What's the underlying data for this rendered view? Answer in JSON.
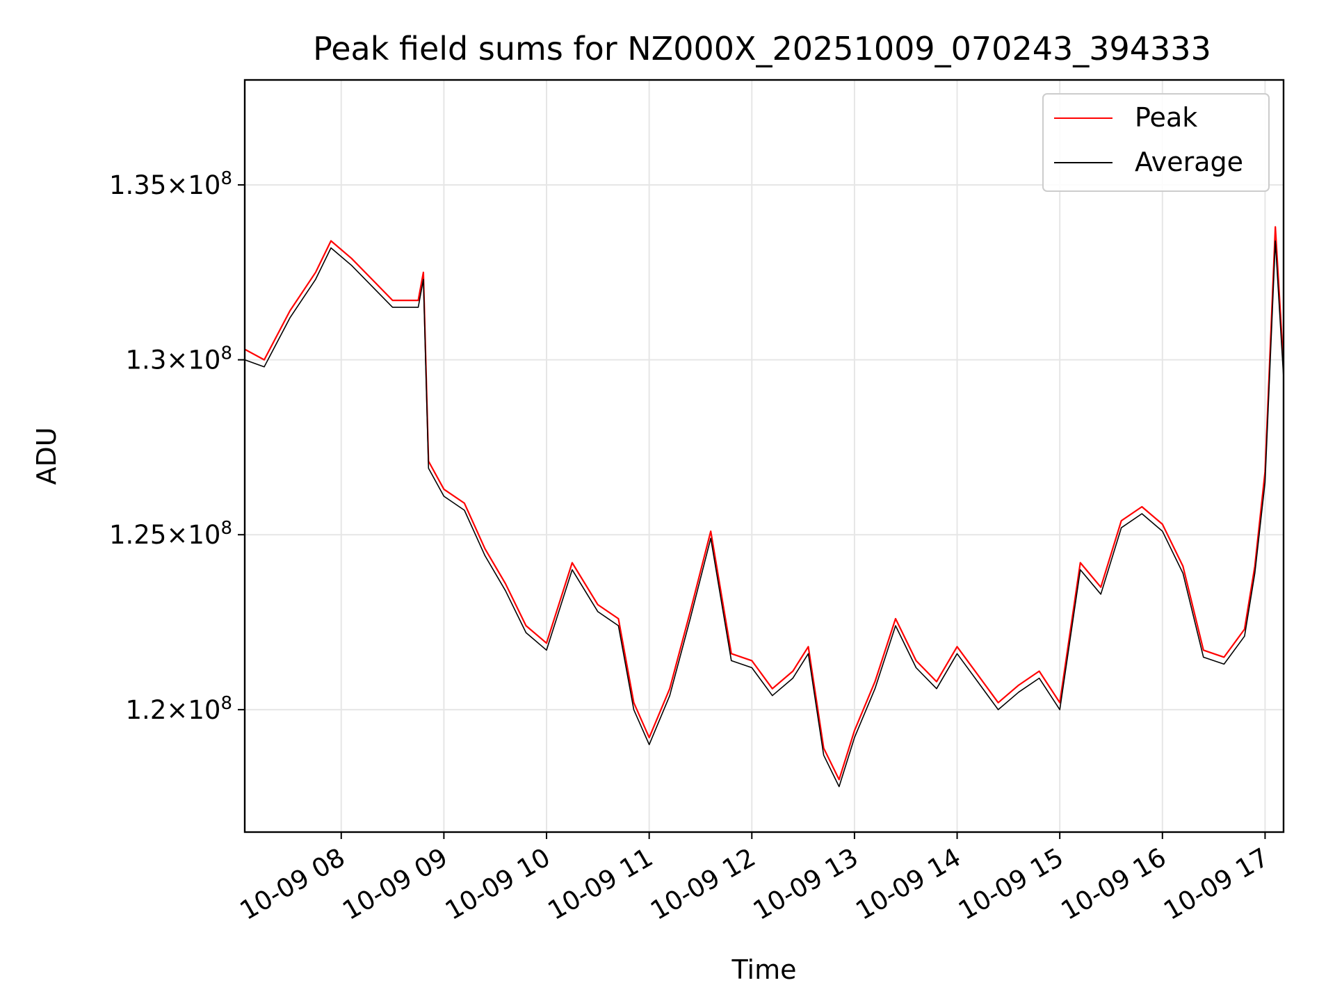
{
  "chart_data": {
    "type": "line",
    "title": "Peak field sums for NZ000X_20251009_070243_394333",
    "xlabel": "Time",
    "ylabel": "ADU",
    "grid": true,
    "legend_position": "top-right",
    "x_range_hours": [
      7.06,
      17.18
    ],
    "ylim": [
      116500000,
      138000000
    ],
    "y_ticks": [
      {
        "value": 120000000,
        "mantissa": "1.2",
        "exponent": "8"
      },
      {
        "value": 125000000,
        "mantissa": "1.25",
        "exponent": "8"
      },
      {
        "value": 130000000,
        "mantissa": "1.3",
        "exponent": "8"
      },
      {
        "value": 135000000,
        "mantissa": "1.35",
        "exponent": "8"
      }
    ],
    "x_ticks": [
      {
        "hour": 8,
        "label": "10-09 08"
      },
      {
        "hour": 9,
        "label": "10-09 09"
      },
      {
        "hour": 10,
        "label": "10-09 10"
      },
      {
        "hour": 11,
        "label": "10-09 11"
      },
      {
        "hour": 12,
        "label": "10-09 12"
      },
      {
        "hour": 13,
        "label": "10-09 13"
      },
      {
        "hour": 14,
        "label": "10-09 14"
      },
      {
        "hour": 15,
        "label": "10-09 15"
      },
      {
        "hour": 16,
        "label": "10-09 16"
      },
      {
        "hour": 17,
        "label": "10-09 17"
      }
    ],
    "series": [
      {
        "name": "Peak",
        "color": "#ff0000",
        "hours": [
          7.06,
          7.25,
          7.5,
          7.75,
          7.9,
          8.1,
          8.3,
          8.5,
          8.75,
          8.8,
          8.85,
          9.0,
          9.2,
          9.4,
          9.6,
          9.8,
          10.0,
          10.25,
          10.5,
          10.7,
          10.85,
          11.0,
          11.2,
          11.4,
          11.6,
          11.8,
          12.0,
          12.2,
          12.4,
          12.55,
          12.7,
          12.85,
          13.0,
          13.2,
          13.4,
          13.6,
          13.8,
          14.0,
          14.2,
          14.4,
          14.6,
          14.8,
          15.0,
          15.2,
          15.4,
          15.6,
          15.8,
          16.0,
          16.2,
          16.4,
          16.6,
          16.8,
          16.9,
          17.0,
          17.1,
          17.18
        ],
        "values": [
          130300000,
          130000000,
          131400000,
          132500000,
          133400000,
          132900000,
          132300000,
          131700000,
          131700000,
          132500000,
          127100000,
          126300000,
          125900000,
          124600000,
          123600000,
          122400000,
          121900000,
          124200000,
          123000000,
          122600000,
          120200000,
          119200000,
          120600000,
          122800000,
          125100000,
          121600000,
          121400000,
          120600000,
          121100000,
          121800000,
          118900000,
          118000000,
          119400000,
          120800000,
          122600000,
          121400000,
          120800000,
          121800000,
          121000000,
          120200000,
          120700000,
          121100000,
          120200000,
          124200000,
          123500000,
          125400000,
          125800000,
          125300000,
          124100000,
          121700000,
          121500000,
          122300000,
          124100000,
          126800000,
          133800000,
          129800000
        ]
      },
      {
        "name": "Average",
        "color": "#000000",
        "hours": [
          7.06,
          7.25,
          7.5,
          7.75,
          7.9,
          8.1,
          8.3,
          8.5,
          8.75,
          8.8,
          8.85,
          9.0,
          9.2,
          9.4,
          9.6,
          9.8,
          10.0,
          10.25,
          10.5,
          10.7,
          10.85,
          11.0,
          11.2,
          11.4,
          11.6,
          11.8,
          12.0,
          12.2,
          12.4,
          12.55,
          12.7,
          12.85,
          13.0,
          13.2,
          13.4,
          13.6,
          13.8,
          14.0,
          14.2,
          14.4,
          14.6,
          14.8,
          15.0,
          15.2,
          15.4,
          15.6,
          15.8,
          16.0,
          16.2,
          16.4,
          16.6,
          16.8,
          16.9,
          17.0,
          17.1,
          17.18
        ],
        "values": [
          130000000,
          129800000,
          131200000,
          132300000,
          133200000,
          132700000,
          132100000,
          131500000,
          131500000,
          132300000,
          126900000,
          126100000,
          125700000,
          124400000,
          123400000,
          122200000,
          121700000,
          124000000,
          122800000,
          122400000,
          120000000,
          119000000,
          120400000,
          122600000,
          124900000,
          121400000,
          121200000,
          120400000,
          120900000,
          121600000,
          118700000,
          117800000,
          119200000,
          120600000,
          122400000,
          121200000,
          120600000,
          121600000,
          120800000,
          120000000,
          120500000,
          120900000,
          120000000,
          124000000,
          123300000,
          125200000,
          125600000,
          125100000,
          123900000,
          121500000,
          121300000,
          122100000,
          123900000,
          126500000,
          133400000,
          129500000
        ]
      }
    ]
  }
}
